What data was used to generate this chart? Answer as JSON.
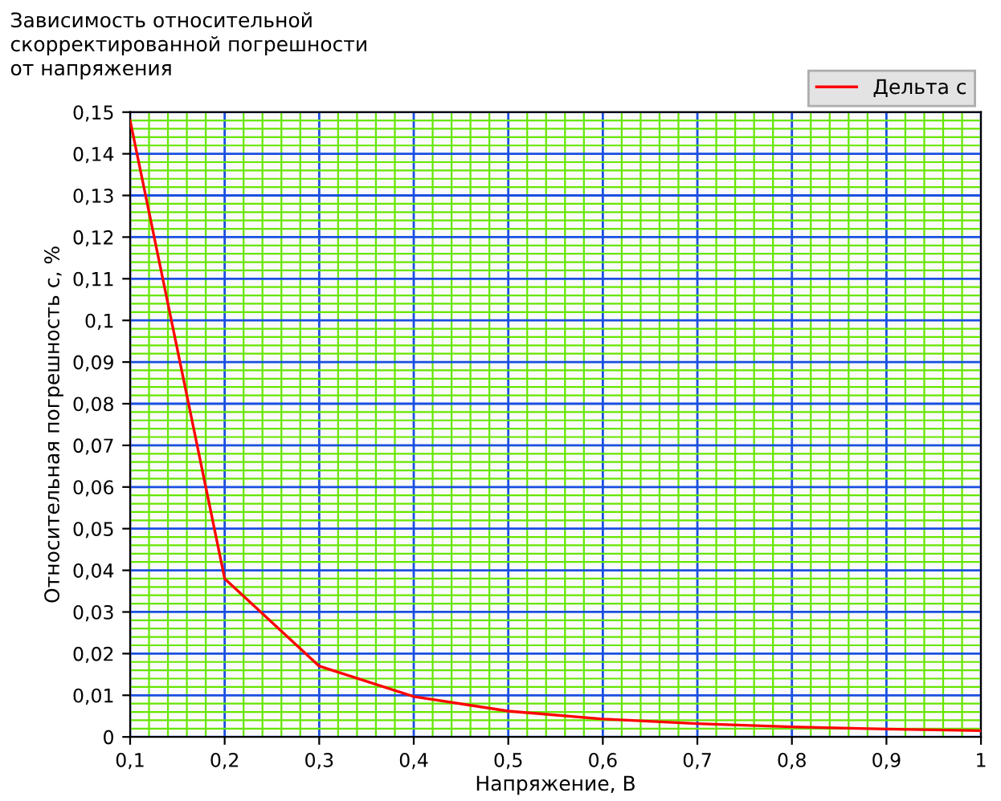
{
  "chart_data": {
    "type": "line",
    "title": "Зависимость относительной\nскорректированной погрешности\nот напряжения",
    "xlabel": "Напряжение, В",
    "ylabel": "Относительная погрешность с, %",
    "x": [
      0.1,
      0.2,
      0.3,
      0.4,
      0.5,
      0.6,
      0.7,
      0.8,
      0.9,
      1.0
    ],
    "series": [
      {
        "name": "Дельта с",
        "color": "#ff0000",
        "values": [
          0.148,
          0.038,
          0.017,
          0.0097,
          0.0062,
          0.0043,
          0.0032,
          0.0024,
          0.0019,
          0.0015
        ]
      }
    ],
    "xlim": [
      0.1,
      1.0
    ],
    "xticks": [
      {
        "value": 0.1,
        "label": "0,1"
      },
      {
        "value": 0.12,
        "label": null
      },
      {
        "value": 0.14,
        "label": null
      },
      {
        "value": 0.16,
        "label": null
      },
      {
        "value": 0.18,
        "label": null
      },
      {
        "value": 0.2,
        "label": "0,2"
      },
      {
        "value": 0.22,
        "label": null
      },
      {
        "value": 0.24,
        "label": null
      },
      {
        "value": 0.26,
        "label": null
      },
      {
        "value": 0.28,
        "label": null
      },
      {
        "value": 0.3,
        "label": "0,3"
      },
      {
        "value": 0.32,
        "label": null
      },
      {
        "value": 0.34,
        "label": null
      },
      {
        "value": 0.36,
        "label": null
      },
      {
        "value": 0.38,
        "label": null
      },
      {
        "value": 0.4,
        "label": "0,4"
      },
      {
        "value": 0.42,
        "label": null
      },
      {
        "value": 0.44,
        "label": null
      },
      {
        "value": 0.46,
        "label": null
      },
      {
        "value": 0.48,
        "label": null
      },
      {
        "value": 0.5,
        "label": "0,5"
      },
      {
        "value": 0.52,
        "label": null
      },
      {
        "value": 0.54,
        "label": null
      },
      {
        "value": 0.56,
        "label": null
      },
      {
        "value": 0.58,
        "label": null
      },
      {
        "value": 0.6,
        "label": "0,6"
      },
      {
        "value": 0.62,
        "label": null
      },
      {
        "value": 0.64,
        "label": null
      },
      {
        "value": 0.66,
        "label": null
      },
      {
        "value": 0.68,
        "label": null
      },
      {
        "value": 0.7,
        "label": "0,7"
      },
      {
        "value": 0.72,
        "label": null
      },
      {
        "value": 0.74,
        "label": null
      },
      {
        "value": 0.76,
        "label": null
      },
      {
        "value": 0.78,
        "label": null
      },
      {
        "value": 0.8,
        "label": "0,8"
      },
      {
        "value": 0.82,
        "label": null
      },
      {
        "value": 0.84,
        "label": null
      },
      {
        "value": 0.86,
        "label": null
      },
      {
        "value": 0.88,
        "label": null
      },
      {
        "value": 0.9,
        "label": "0,9"
      },
      {
        "value": 0.92,
        "label": null
      },
      {
        "value": 0.94,
        "label": null
      },
      {
        "value": 0.96,
        "label": null
      },
      {
        "value": 0.98,
        "label": null
      },
      1
    ],
    "ylim": [
      0,
      0.15
    ],
    "yticks": [
      0,
      {
        "value": 0.002,
        "label": null
      },
      {
        "value": 0.004,
        "label": null
      },
      {
        "value": 0.006,
        "label": null
      },
      {
        "value": 0.008,
        "label": null
      },
      {
        "value": 0.01,
        "label": "0,01"
      },
      {
        "value": 0.012,
        "label": null
      },
      {
        "value": 0.014,
        "label": null
      },
      {
        "value": 0.016,
        "label": null
      },
      {
        "value": 0.018,
        "label": null
      },
      {
        "value": 0.02,
        "label": "0,02"
      },
      {
        "value": 0.022,
        "label": null
      },
      {
        "value": 0.024,
        "label": null
      },
      {
        "value": 0.026,
        "label": null
      },
      {
        "value": 0.028,
        "label": null
      },
      {
        "value": 0.03,
        "label": "0,03"
      },
      {
        "value": 0.032,
        "label": null
      },
      {
        "value": 0.034,
        "label": null
      },
      {
        "value": 0.036,
        "label": null
      },
      {
        "value": 0.038,
        "label": null
      },
      {
        "value": 0.04,
        "label": "0,04"
      },
      {
        "value": 0.042,
        "label": null
      },
      {
        "value": 0.044,
        "label": null
      },
      {
        "value": 0.046,
        "label": null
      },
      {
        "value": 0.048,
        "label": null
      },
      {
        "value": 0.05,
        "label": "0,05"
      },
      {
        "value": 0.052,
        "label": null
      },
      {
        "value": 0.054,
        "label": null
      },
      {
        "value": 0.056,
        "label": null
      },
      {
        "value": 0.058,
        "label": null
      },
      {
        "value": 0.06,
        "label": "0,06"
      },
      {
        "value": 0.062,
        "label": null
      },
      {
        "value": 0.064,
        "label": null
      },
      {
        "value": 0.066,
        "label": null
      },
      {
        "value": 0.068,
        "label": null
      },
      {
        "value": 0.07,
        "label": "0,07"
      },
      {
        "value": 0.072,
        "label": null
      },
      {
        "value": 0.074,
        "label": null
      },
      {
        "value": 0.076,
        "label": null
      },
      {
        "value": 0.078,
        "label": null
      },
      {
        "value": 0.08,
        "label": "0,08"
      },
      {
        "value": 0.082,
        "label": null
      },
      {
        "value": 0.084,
        "label": null
      },
      {
        "value": 0.086,
        "label": null
      },
      {
        "value": 0.088,
        "label": null
      },
      {
        "value": 0.09,
        "label": "0,09"
      },
      {
        "value": 0.092,
        "label": null
      },
      {
        "value": 0.094,
        "label": null
      },
      {
        "value": 0.096,
        "label": null
      },
      {
        "value": 0.098,
        "label": null
      },
      {
        "value": 0.1,
        "label": "0,1"
      },
      {
        "value": 0.102,
        "label": null
      },
      {
        "value": 0.104,
        "label": null
      },
      {
        "value": 0.106,
        "label": null
      },
      {
        "value": 0.108,
        "label": null
      },
      {
        "value": 0.11,
        "label": "0,11"
      },
      {
        "value": 0.112,
        "label": null
      },
      {
        "value": 0.114,
        "label": null
      },
      {
        "value": 0.116,
        "label": null
      },
      {
        "value": 0.118,
        "label": null
      },
      {
        "value": 0.12,
        "label": "0,12"
      },
      {
        "value": 0.122,
        "label": null
      },
      {
        "value": 0.124,
        "label": null
      },
      {
        "value": 0.126,
        "label": null
      },
      {
        "value": 0.128,
        "label": null
      },
      {
        "value": 0.13,
        "label": "0,13"
      },
      {
        "value": 0.132,
        "label": null
      },
      {
        "value": 0.134,
        "label": null
      },
      {
        "value": 0.136,
        "label": null
      },
      {
        "value": 0.138,
        "label": null
      },
      {
        "value": 0.14,
        "label": "0,14"
      },
      {
        "value": 0.142,
        "label": null
      },
      {
        "value": 0.144,
        "label": null
      },
      {
        "value": 0.146,
        "label": null
      },
      {
        "value": 0.148,
        "label": null
      },
      {
        "value": 0.15,
        "label": "0,15"
      }
    ],
    "grid": true,
    "legend": "top right",
    "marker": "none",
    "line_style": "solid"
  }
}
